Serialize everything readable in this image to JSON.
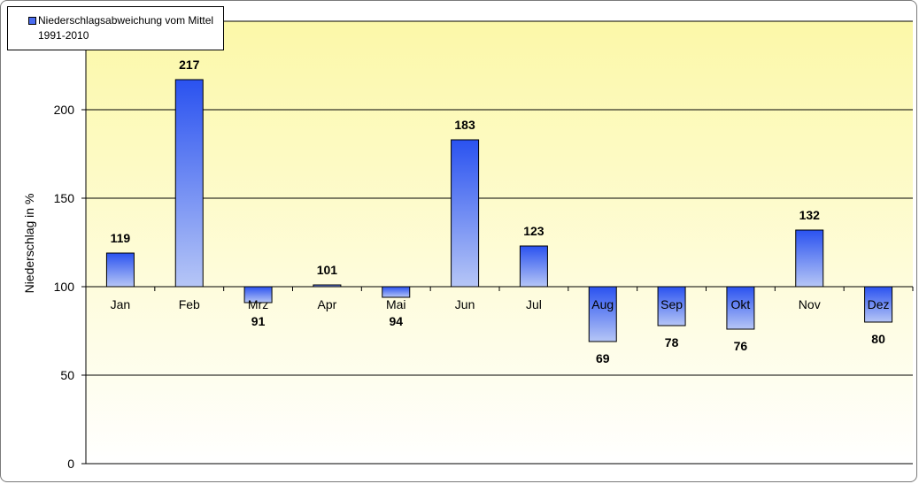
{
  "chart_data": {
    "type": "bar",
    "title": "",
    "xlabel": "",
    "ylabel": "Niederschlag in %",
    "categories": [
      "Jan",
      "Feb",
      "Mrz",
      "Apr",
      "Mai",
      "Jun",
      "Jul",
      "Aug",
      "Sep",
      "Okt",
      "Nov",
      "Dez"
    ],
    "series": [
      {
        "name": "Niederschlagsabweichung vom Mittel 1991-2010",
        "values": [
          119,
          217,
          91,
          101,
          94,
          183,
          123,
          69,
          78,
          76,
          132,
          80
        ]
      }
    ],
    "baseline": 100,
    "ylim": [
      0,
      250
    ],
    "yticks": [
      0,
      50,
      100,
      150,
      200
    ],
    "grid": true,
    "legend_position": "top-left",
    "colors": {
      "bar_top": "#2a52f0",
      "bar_bottom": "#b6c6f6",
      "plot_bg_top": "#fcf8a8",
      "plot_bg_bottom": "#ffffff"
    }
  }
}
